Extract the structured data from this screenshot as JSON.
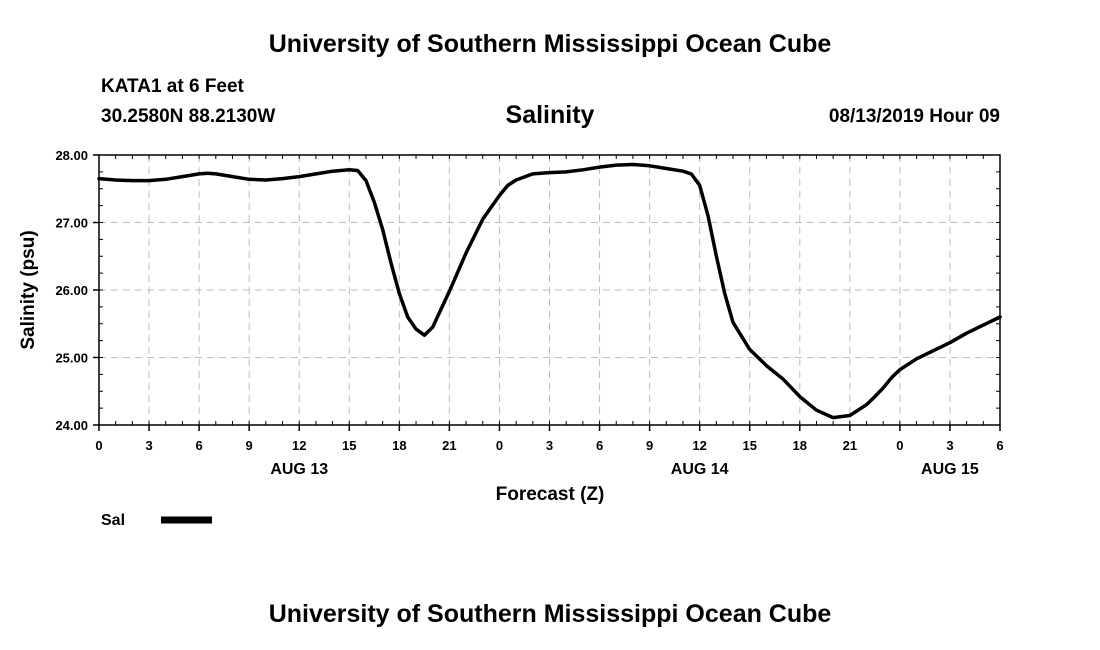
{
  "header": {
    "title": "University of Southern Mississippi Ocean Cube",
    "station": "KATA1 at 6 Feet",
    "coordinates": "30.2580N 88.2130W",
    "timestamp": "08/13/2019 Hour 09"
  },
  "footer": {
    "title": "University of Southern Mississippi Ocean Cube"
  },
  "chart_data": {
    "type": "line",
    "title": "Salinity",
    "xlabel": "Forecast (Z)",
    "ylabel": "Salinity (psu)",
    "xlim": [
      0,
      54
    ],
    "ylim": [
      24.0,
      28.0
    ],
    "grid": true,
    "y_ticks": [
      24.0,
      25.0,
      26.0,
      27.0,
      28.0
    ],
    "y_tick_labels": [
      "24.00",
      "25.00",
      "26.00",
      "27.00",
      "28.00"
    ],
    "x_ticks": [
      0,
      3,
      6,
      9,
      12,
      15,
      18,
      21,
      24,
      27,
      30,
      33,
      36,
      39,
      42,
      45,
      48,
      51,
      54
    ],
    "x_tick_labels": [
      "0",
      "3",
      "6",
      "9",
      "12",
      "15",
      "18",
      "21",
      "0",
      "3",
      "6",
      "9",
      "12",
      "15",
      "18",
      "21",
      "0",
      "3",
      "6"
    ],
    "date_labels": [
      {
        "label": "AUG 13",
        "x": 12
      },
      {
        "label": "AUG 14",
        "x": 36
      },
      {
        "label": "AUG 15",
        "x": 51
      }
    ],
    "legend_position": "bottom-left",
    "series": [
      {
        "name": "Sal",
        "color": "#000000",
        "x": [
          0,
          1,
          2,
          3,
          4,
          5,
          6,
          6.5,
          7,
          8,
          9,
          10,
          11,
          12,
          13,
          14,
          15,
          15.5,
          16,
          16.5,
          17,
          17.5,
          18,
          18.5,
          19,
          19.5,
          20,
          21,
          22,
          23,
          24,
          24.5,
          25,
          26,
          27,
          28,
          29,
          30,
          31,
          32,
          33,
          34,
          35,
          35.5,
          36,
          36.5,
          37,
          37.5,
          38,
          39,
          40,
          41,
          42,
          43,
          44,
          45,
          46,
          46.5,
          47,
          47.5,
          48,
          49,
          50,
          51,
          52,
          53,
          54
        ],
        "values": [
          27.65,
          27.63,
          27.62,
          27.62,
          27.64,
          27.68,
          27.72,
          27.73,
          27.72,
          27.68,
          27.64,
          27.63,
          27.65,
          27.68,
          27.72,
          27.76,
          27.78,
          27.77,
          27.62,
          27.3,
          26.9,
          26.4,
          25.95,
          25.6,
          25.42,
          25.33,
          25.45,
          25.98,
          26.55,
          27.05,
          27.4,
          27.55,
          27.63,
          27.72,
          27.74,
          27.75,
          27.78,
          27.82,
          27.85,
          27.86,
          27.84,
          27.8,
          27.76,
          27.72,
          27.55,
          27.1,
          26.5,
          25.95,
          25.52,
          25.12,
          24.88,
          24.68,
          24.42,
          24.22,
          24.11,
          24.14,
          24.3,
          24.42,
          24.55,
          24.7,
          24.82,
          24.98,
          25.1,
          25.22,
          25.36,
          25.48,
          25.6
        ]
      }
    ]
  }
}
